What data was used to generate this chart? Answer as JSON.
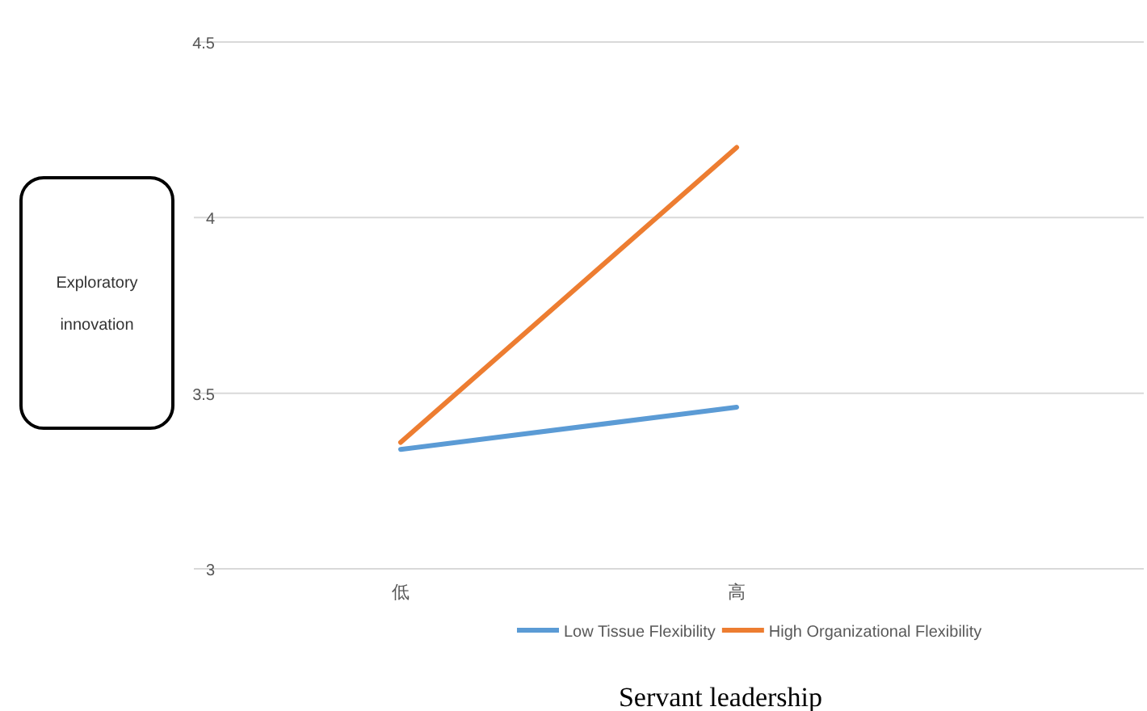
{
  "chart_data": {
    "type": "line",
    "xlabel": "Servant leadership",
    "ylabel": "Exploratory innovation",
    "categories": [
      "低",
      "高"
    ],
    "series": [
      {
        "name": "Low Tissue Flexibility",
        "color": "#5b9bd5",
        "values": [
          3.34,
          3.46
        ]
      },
      {
        "name": "High Organizational Flexibility",
        "color": "#ed7d31",
        "values": [
          3.36,
          4.2
        ]
      }
    ],
    "ylim": [
      3,
      4.5
    ],
    "yticks": [
      3,
      3.5,
      4,
      4.5
    ],
    "grid": "y",
    "legend": "bottom",
    "marker": "none"
  }
}
